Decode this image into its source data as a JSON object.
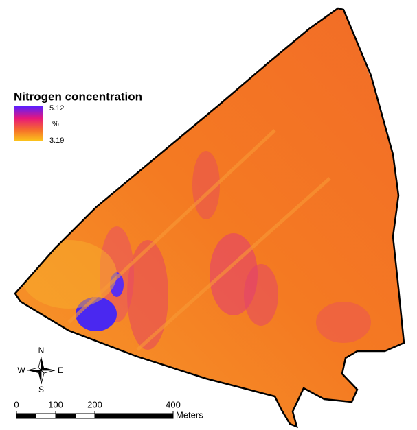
{
  "legend": {
    "title": "Nitrogen concentration",
    "max": 5.12,
    "unit": "%",
    "min": 3.19
  },
  "compass": {
    "north": "N",
    "south": "S",
    "east": "E",
    "west": "W"
  },
  "scale_bar": {
    "ticks": [
      0,
      100,
      200,
      400
    ],
    "unit": "Meters"
  }
}
